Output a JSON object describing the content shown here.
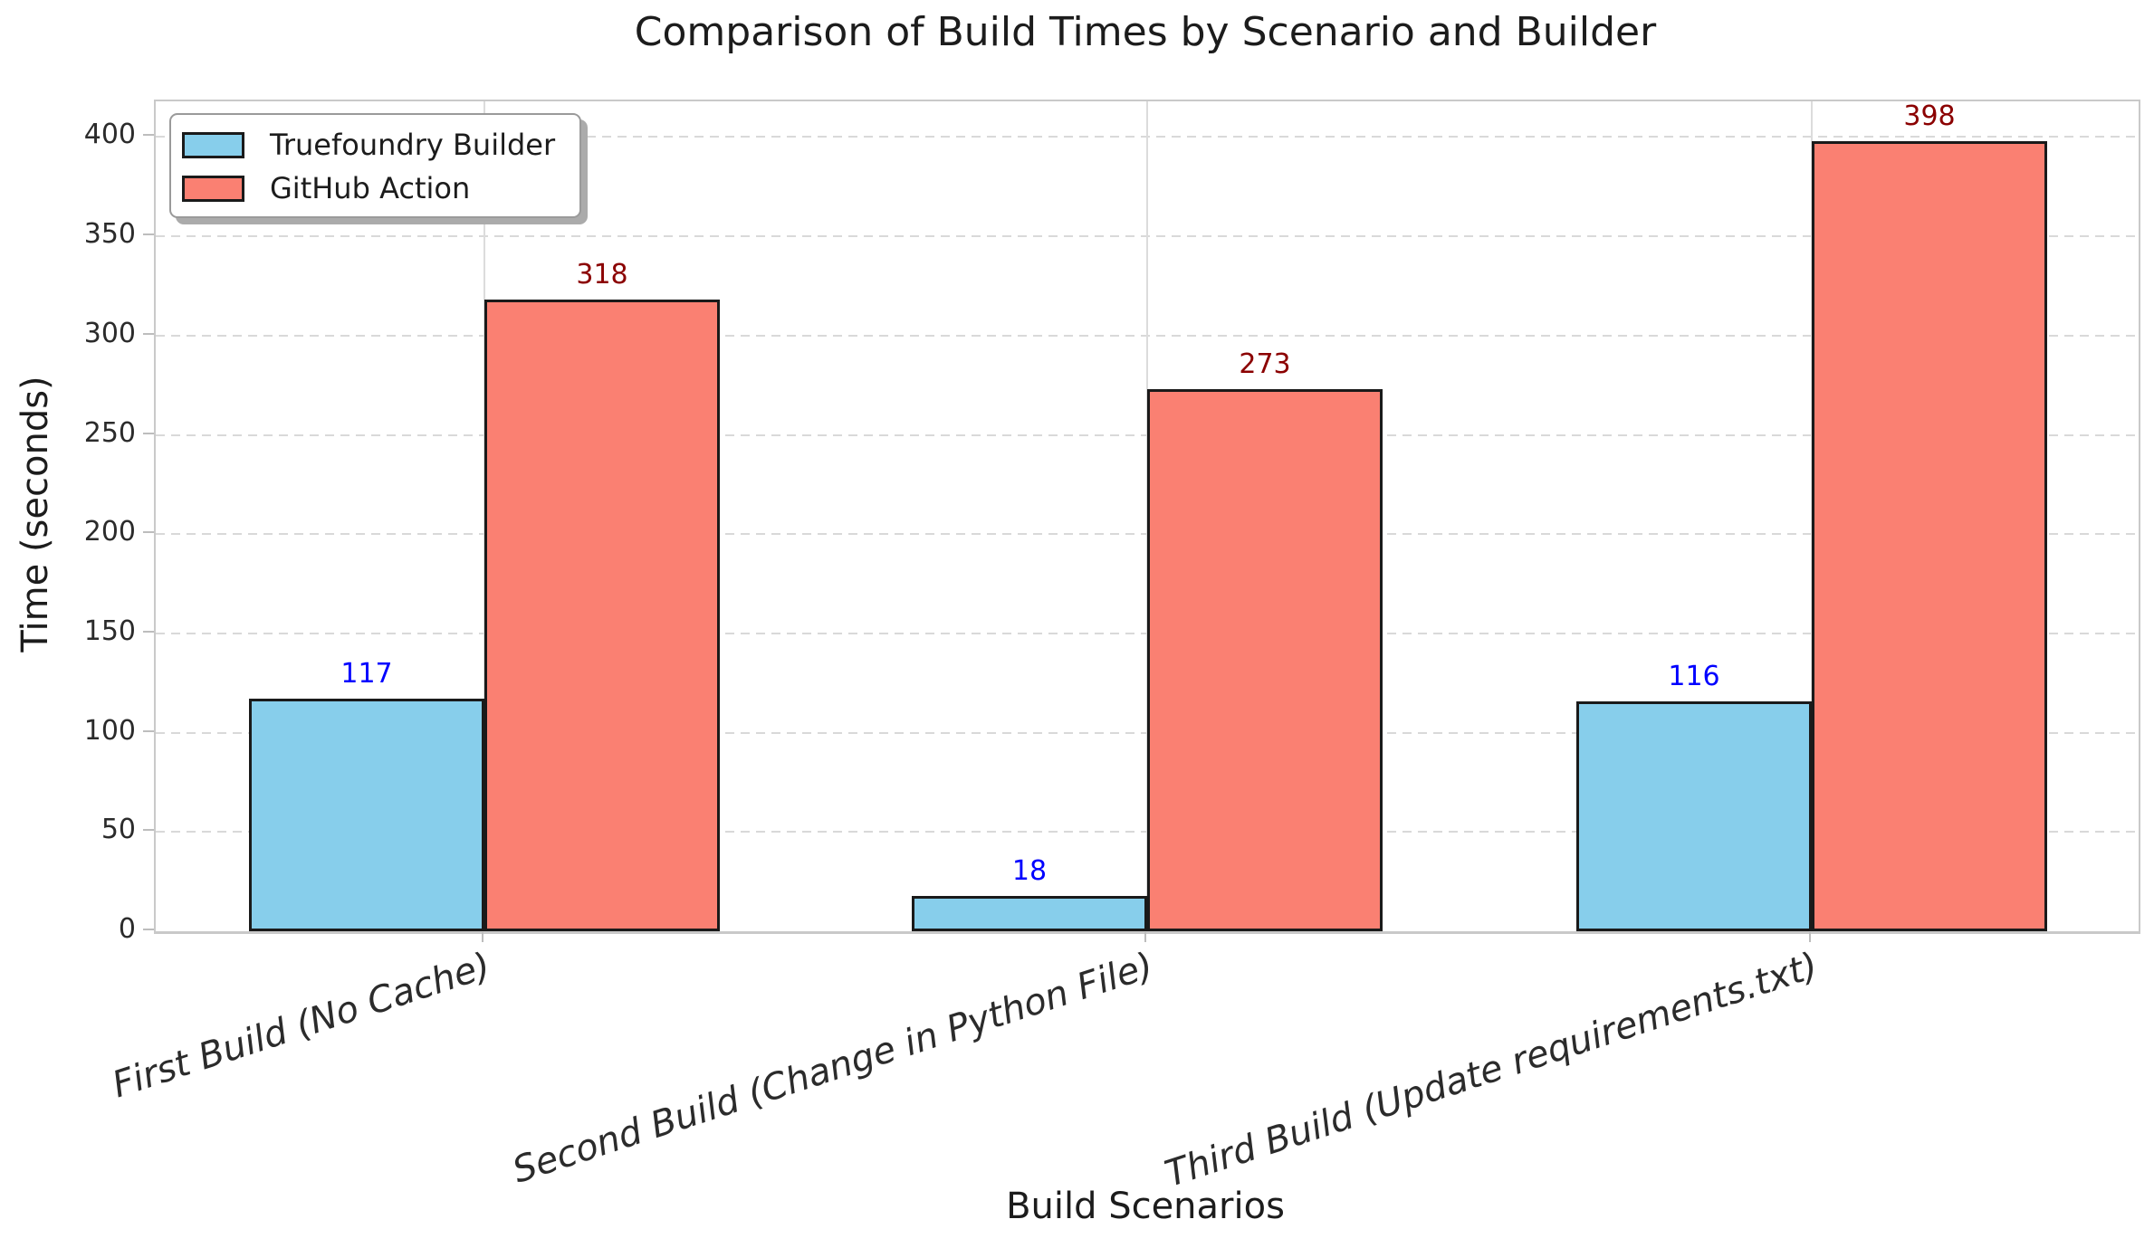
{
  "chart_data": {
    "type": "bar",
    "title": "Comparison of Build Times by Scenario and Builder",
    "xlabel": "Build Scenarios",
    "ylabel": "Time (seconds)",
    "categories": [
      "First Build (No Cache)",
      "Second Build (Change in Python File)",
      "Third Build (Update requirements.txt)"
    ],
    "series": [
      {
        "name": "Truefoundry Builder",
        "color": "#87CEEB",
        "label_color": "#0000FF",
        "values": [
          117,
          18,
          116
        ]
      },
      {
        "name": "GitHub Action",
        "color": "#FA8072",
        "label_color": "#8B0000",
        "values": [
          318,
          273,
          398
        ]
      }
    ],
    "yticks": [
      0,
      50,
      100,
      150,
      200,
      250,
      300,
      350,
      400
    ],
    "ylim": [
      0,
      418
    ],
    "bar_edge_color": "#1a1a1a",
    "grid": {
      "horizontal": "dashed",
      "vertical": "solid"
    },
    "legend_position": "upper-left",
    "x_tick_style": "italic-rotated"
  }
}
